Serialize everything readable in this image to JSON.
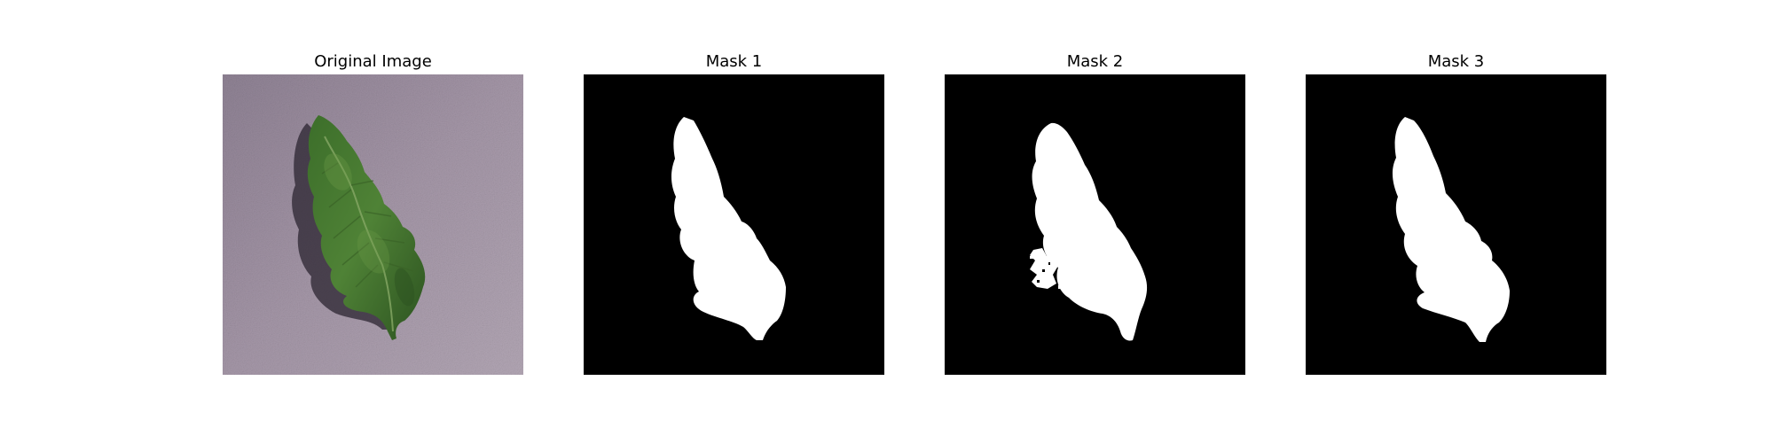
{
  "figure": {
    "panels": [
      {
        "title": "Original Image",
        "content": "photo of a green leaf on a grey-purple textured surface"
      },
      {
        "title": "Mask 1",
        "content": "binary segmentation mask"
      },
      {
        "title": "Mask 2",
        "content": "binary segmentation mask"
      },
      {
        "title": "Mask 3",
        "content": "binary segmentation mask"
      }
    ]
  },
  "colors": {
    "page_background": "#ffffff",
    "mask_background": "#000000",
    "mask_foreground": "#ffffff",
    "surface": "#9a8c9e",
    "leaf_dark": "#2e5a22",
    "leaf_mid": "#4c7d33",
    "leaf_light": "#6e9c48"
  }
}
